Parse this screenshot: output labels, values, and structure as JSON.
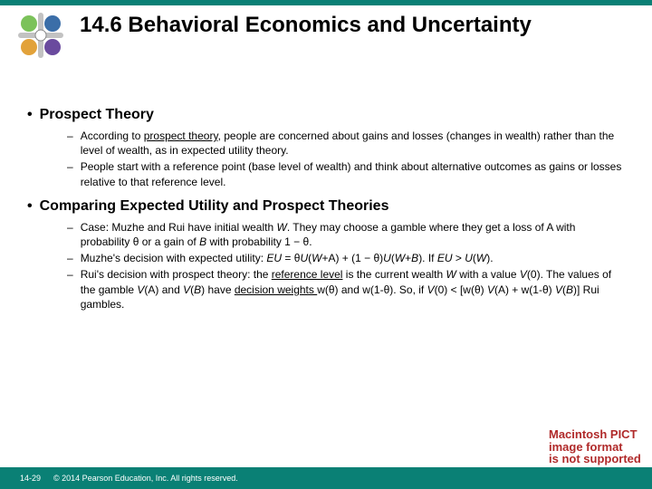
{
  "colors": {
    "header_bar": "#0a8075",
    "title": "#000000",
    "body_text": "#000000",
    "footer_bg": "#0a8075",
    "footer_text": "#ffffff",
    "error_text": "#b02a2a",
    "icon_green": "#7bc25a",
    "icon_blue": "#3b6ea8",
    "icon_orange": "#e2a23a",
    "icon_purple": "#6a4a9e"
  },
  "title_fontsize": "24px",
  "topic_fontsize": "16px",
  "sub_fontsize": "12px",
  "footer_fontsize": "9px",
  "error_fontsize": "13px",
  "title": "14.6 Behavioral Economics and Uncertainty",
  "sections": [
    {
      "heading": "Prospect Theory",
      "items": [
        {
          "pre": "According to ",
          "u": "prospect theory",
          "post": ", people are concerned about gains and losses (changes in wealth) rather than the level of wealth, as in expected utility theory."
        },
        {
          "text": "People start with a reference point (base level of wealth) and think about alternative outcomes as gains or losses relative to that reference level."
        }
      ]
    },
    {
      "heading": "Comparing Expected Utility and Prospect Theories",
      "items": [
        {
          "html": "Case: Muzhe and Rui have initial wealth <span class='italic'>W</span>. They may choose a gamble where they get a loss of A with probability θ or a gain of <span class='italic'>B</span> with probability 1 − θ."
        },
        {
          "html": "Muzhe's decision with expected utility: <span class='italic'>EU</span> = θ<span class='italic'>U</span>(<span class='italic'>W</span>+A) + (1 − θ)<span class='italic'>U</span>(<span class='italic'>W</span>+<span class='italic'>B</span>). If <span class='italic'>EU</span> &gt; <span class='italic'>U</span>(<span class='italic'>W</span>)."
        },
        {
          "html": "Rui's decision with prospect theory: the <span class='underline'>reference level</span> is the current wealth <span class='italic'>W</span> with a value <span class='italic'>V</span>(0). The values of the gamble <span class='italic'>V</span>(A) and <span class='italic'>V</span>(<span class='italic'>B</span>) have <span class='underline'>decision weights </span>w(θ) and w(1-θ). So, if <span class='italic'>V</span>(0) &lt; [w(θ) <span class='italic'>V</span>(A) + w(1-θ) <span class='italic'>V</span>(<span class='italic'>B</span>)] Rui gambles."
        }
      ]
    }
  ],
  "footer": {
    "slide": "14-29",
    "copyright": "© 2014 Pearson Education, Inc. All rights reserved."
  },
  "error_lines": [
    "Macintosh PICT",
    "image format",
    "is not supported"
  ]
}
